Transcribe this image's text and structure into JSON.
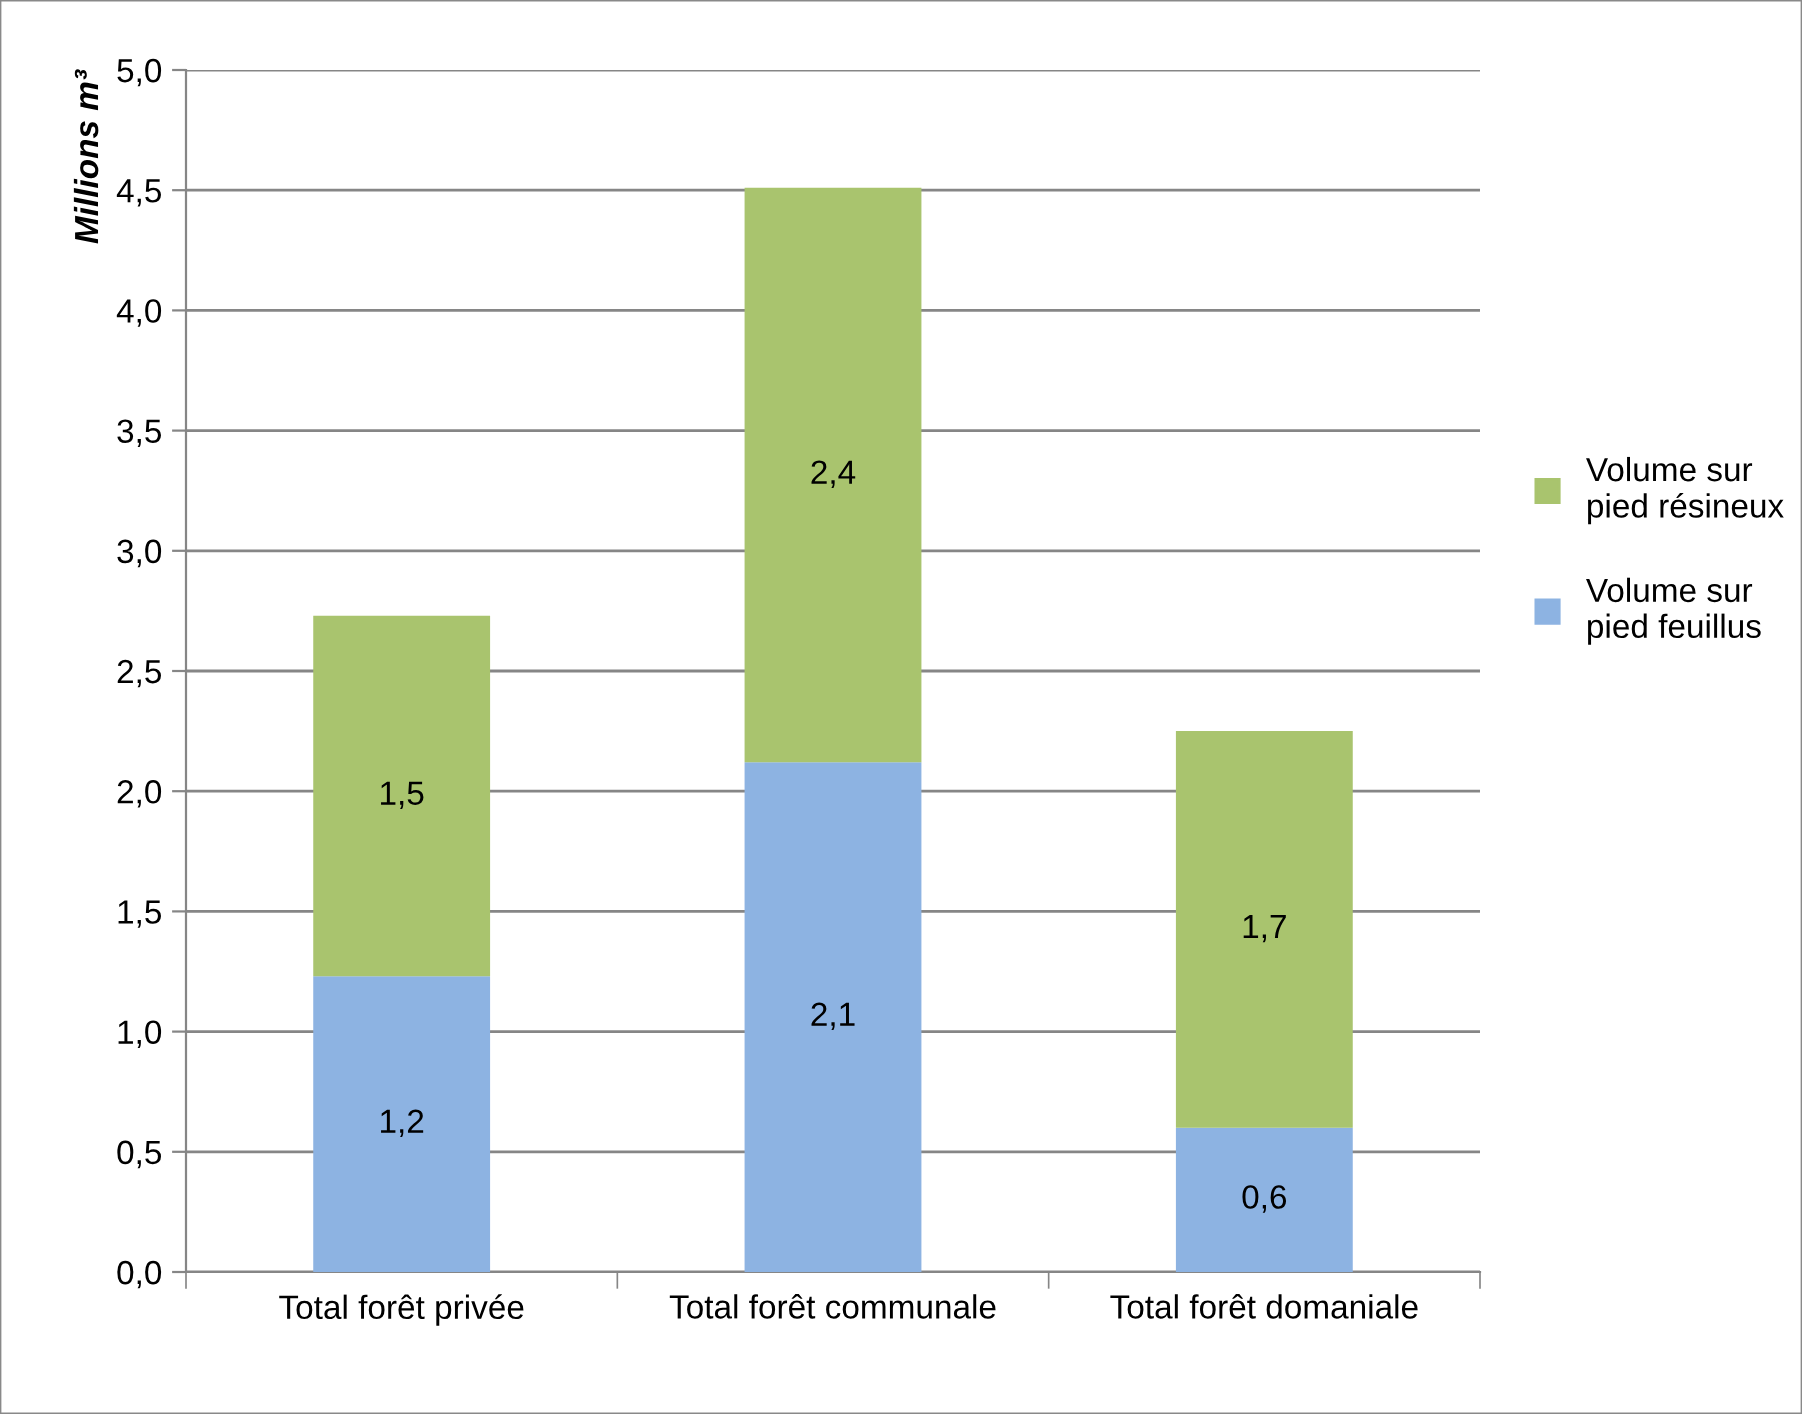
{
  "chart_data": {
    "type": "bar",
    "stacked": true,
    "ylabel": "Millions m³",
    "categories": [
      "Total forêt privée",
      "Total forêt communale",
      "Total forêt domaniale"
    ],
    "series": [
      {
        "name": "Volume sur pied feuillus",
        "color": "#8db3e2",
        "values": [
          1.23,
          2.12,
          0.6
        ],
        "value_labels": [
          "1,2",
          "2,1",
          "0,6"
        ]
      },
      {
        "name": "Volume sur pied résineux",
        "color": "#a9c46e",
        "values": [
          1.5,
          2.39,
          1.65
        ],
        "value_labels": [
          "1,5",
          "2,4",
          "1,7"
        ]
      }
    ],
    "ylim": [
      0,
      5
    ],
    "yticks": [
      {
        "value": 0,
        "label": "0,0"
      },
      {
        "value": 0.5,
        "label": "0,5"
      },
      {
        "value": 1,
        "label": "1,0"
      },
      {
        "value": 1.5,
        "label": "1,5"
      },
      {
        "value": 2,
        "label": "2,0"
      },
      {
        "value": 2.5,
        "label": "2,5"
      },
      {
        "value": 3,
        "label": "3,0"
      },
      {
        "value": 3.5,
        "label": "3,5"
      },
      {
        "value": 4,
        "label": "4,0"
      },
      {
        "value": 4.5,
        "label": "4,5"
      },
      {
        "value": 5,
        "label": "5,0"
      }
    ],
    "grid": "y",
    "legend": "right"
  }
}
